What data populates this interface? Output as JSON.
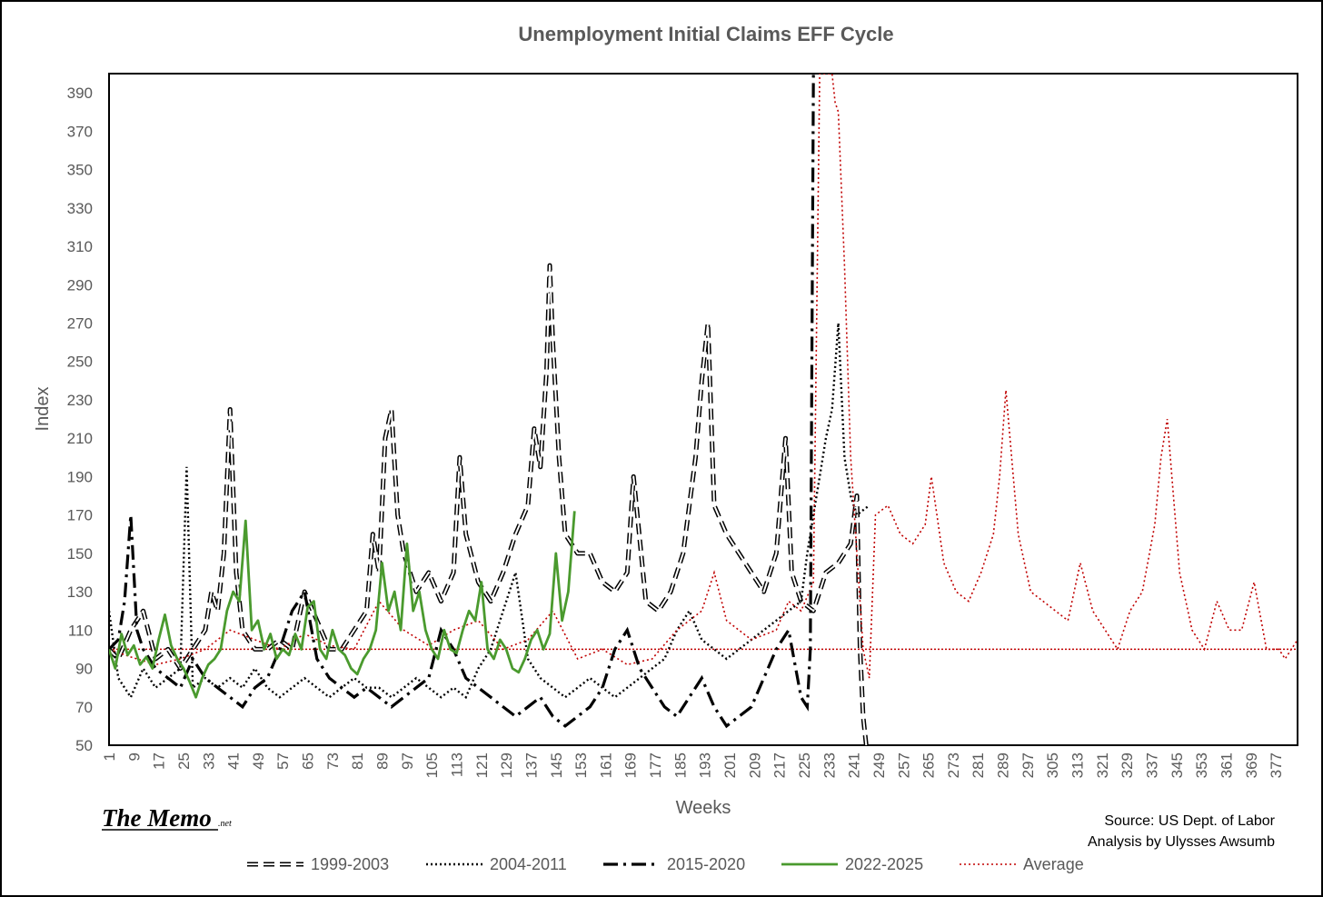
{
  "chart_data": {
    "type": "line",
    "title": "Unemployment Initial Claims EFF Cycle",
    "xlabel": "Weeks",
    "ylabel": "Index",
    "xlim": [
      1,
      384
    ],
    "ylim": [
      50,
      400
    ],
    "y_ticks": [
      50,
      70,
      90,
      110,
      130,
      150,
      170,
      190,
      210,
      230,
      250,
      270,
      290,
      310,
      330,
      350,
      370,
      390
    ],
    "x_ticks": [
      1,
      9,
      17,
      25,
      33,
      41,
      49,
      57,
      65,
      73,
      81,
      89,
      97,
      105,
      113,
      121,
      129,
      137,
      145,
      153,
      161,
      169,
      177,
      185,
      193,
      201,
      209,
      217,
      225,
      233,
      241,
      249,
      257,
      265,
      273,
      281,
      289,
      297,
      305,
      313,
      321,
      329,
      337,
      345,
      353,
      361,
      369,
      377
    ],
    "reference_line": 100,
    "grid": false,
    "legend_position": "bottom",
    "series": [
      {
        "name": "1999-2003",
        "style": "outline-dash",
        "color": "#000000",
        "x": [
          1,
          4,
          8,
          12,
          16,
          20,
          24,
          28,
          32,
          34,
          36,
          38,
          40,
          42,
          44,
          48,
          52,
          56,
          60,
          64,
          68,
          72,
          76,
          80,
          84,
          86,
          88,
          90,
          92,
          94,
          96,
          100,
          104,
          108,
          112,
          114,
          116,
          120,
          124,
          128,
          132,
          136,
          138,
          140,
          142,
          143,
          144,
          146,
          148,
          152,
          156,
          160,
          164,
          168,
          170,
          174,
          178,
          182,
          186,
          190,
          192,
          194,
          196,
          200,
          204,
          208,
          212,
          216,
          219,
          221,
          224,
          228,
          232,
          236,
          240,
          242,
          243,
          244,
          245
        ],
        "values": [
          100,
          95,
          110,
          120,
          95,
          100,
          90,
          100,
          110,
          130,
          120,
          150,
          225,
          140,
          110,
          100,
          100,
          105,
          100,
          130,
          115,
          100,
          100,
          110,
          120,
          160,
          140,
          210,
          225,
          170,
          150,
          130,
          140,
          125,
          140,
          200,
          160,
          135,
          125,
          140,
          160,
          175,
          215,
          195,
          245,
          300,
          260,
          200,
          160,
          150,
          150,
          135,
          130,
          140,
          190,
          125,
          120,
          130,
          150,
          200,
          240,
          270,
          175,
          160,
          150,
          140,
          130,
          150,
          210,
          140,
          125,
          120,
          140,
          145,
          155,
          180,
          100,
          65,
          50
        ]
      },
      {
        "name": "2004-2011",
        "style": "dotted",
        "color": "#000000",
        "x": [
          1,
          4,
          8,
          12,
          16,
          20,
          24,
          26,
          28,
          32,
          36,
          40,
          44,
          48,
          52,
          56,
          60,
          64,
          68,
          72,
          76,
          80,
          84,
          88,
          92,
          96,
          100,
          104,
          108,
          112,
          116,
          120,
          124,
          128,
          132,
          136,
          140,
          144,
          148,
          152,
          156,
          160,
          164,
          168,
          172,
          176,
          180,
          184,
          188,
          192,
          196,
          200,
          204,
          208,
          212,
          216,
          220,
          224,
          226,
          228,
          230,
          232,
          234,
          236,
          238,
          240,
          242,
          246
        ],
        "values": [
          120,
          85,
          75,
          90,
          80,
          85,
          90,
          195,
          80,
          85,
          80,
          85,
          80,
          90,
          80,
          75,
          80,
          85,
          80,
          75,
          80,
          85,
          80,
          80,
          75,
          80,
          85,
          80,
          75,
          80,
          75,
          90,
          100,
          120,
          140,
          95,
          85,
          80,
          75,
          80,
          85,
          80,
          75,
          80,
          85,
          90,
          95,
          110,
          120,
          105,
          100,
          95,
          100,
          105,
          110,
          115,
          120,
          125,
          150,
          170,
          190,
          210,
          225,
          270,
          200,
          180,
          170,
          175
        ]
      },
      {
        "name": "2015-2020",
        "style": "dash-dot",
        "color": "#000000",
        "x": [
          1,
          4,
          6,
          8,
          10,
          12,
          16,
          20,
          24,
          28,
          32,
          36,
          40,
          44,
          48,
          52,
          56,
          60,
          64,
          68,
          72,
          76,
          80,
          84,
          88,
          92,
          96,
          100,
          104,
          108,
          112,
          116,
          120,
          124,
          128,
          132,
          136,
          140,
          144,
          148,
          152,
          156,
          160,
          164,
          168,
          172,
          176,
          180,
          184,
          188,
          192,
          196,
          200,
          204,
          208,
          212,
          216,
          220,
          224,
          226,
          227,
          228
        ],
        "values": [
          100,
          105,
          125,
          170,
          110,
          100,
          90,
          85,
          80,
          95,
          85,
          80,
          75,
          70,
          80,
          85,
          100,
          120,
          130,
          95,
          85,
          80,
          75,
          80,
          75,
          70,
          75,
          80,
          85,
          110,
          100,
          85,
          80,
          75,
          70,
          65,
          70,
          75,
          65,
          60,
          65,
          70,
          80,
          100,
          110,
          90,
          80,
          70,
          65,
          75,
          85,
          70,
          60,
          65,
          70,
          85,
          100,
          110,
          75,
          70,
          100,
          400
        ]
      },
      {
        "name": "2022-2025",
        "style": "solid",
        "color": "#4a9a2e",
        "x": [
          1,
          3,
          5,
          7,
          9,
          11,
          13,
          15,
          17,
          19,
          21,
          23,
          25,
          27,
          29,
          31,
          33,
          35,
          37,
          39,
          41,
          43,
          45,
          47,
          49,
          51,
          53,
          55,
          57,
          59,
          61,
          63,
          65,
          67,
          69,
          71,
          73,
          75,
          77,
          79,
          81,
          83,
          85,
          87,
          89,
          91,
          93,
          95,
          97,
          99,
          101,
          103,
          105,
          107,
          109,
          111,
          113,
          115,
          117,
          119,
          121,
          123,
          125,
          127,
          129,
          131,
          133,
          135,
          137,
          139,
          141,
          143,
          145,
          147,
          149,
          151
        ],
        "values": [
          100,
          90,
          108,
          97,
          102,
          92,
          96,
          90,
          105,
          118,
          102,
          95,
          90,
          83,
          75,
          85,
          92,
          95,
          100,
          120,
          130,
          125,
          167,
          110,
          115,
          100,
          108,
          95,
          100,
          97,
          108,
          100,
          122,
          125,
          100,
          95,
          110,
          100,
          97,
          90,
          87,
          95,
          100,
          110,
          145,
          120,
          130,
          110,
          155,
          120,
          130,
          110,
          100,
          95,
          110,
          100,
          98,
          110,
          120,
          115,
          135,
          100,
          95,
          105,
          100,
          90,
          88,
          95,
          105,
          110,
          100,
          108,
          150,
          115,
          130,
          172
        ]
      },
      {
        "name": "Average",
        "style": "dotted",
        "color": "#c00000",
        "x": [
          1,
          8,
          16,
          24,
          32,
          40,
          48,
          56,
          64,
          72,
          80,
          88,
          96,
          104,
          112,
          120,
          128,
          136,
          144,
          152,
          160,
          168,
          176,
          184,
          192,
          196,
          200,
          208,
          216,
          220,
          224,
          228,
          230,
          232,
          234,
          235,
          236,
          238,
          240,
          242,
          244,
          246,
          248,
          252,
          256,
          260,
          264,
          266,
          270,
          274,
          278,
          282,
          286,
          288,
          290,
          294,
          298,
          302,
          306,
          310,
          314,
          318,
          322,
          326,
          330,
          334,
          338,
          340,
          342,
          346,
          350,
          354,
          358,
          362,
          366,
          370,
          374,
          378,
          380,
          384
        ],
        "values": [
          100,
          96,
          92,
          95,
          100,
          110,
          105,
          100,
          108,
          102,
          100,
          125,
          110,
          102,
          110,
          115,
          100,
          105,
          120,
          95,
          100,
          92,
          95,
          110,
          120,
          140,
          115,
          105,
          110,
          125,
          120,
          135,
          400,
          400,
          400,
          385,
          380,
          300,
          200,
          150,
          100,
          85,
          170,
          175,
          160,
          155,
          165,
          190,
          145,
          130,
          125,
          140,
          160,
          190,
          235,
          160,
          130,
          125,
          120,
          115,
          145,
          120,
          110,
          100,
          120,
          130,
          165,
          200,
          220,
          140,
          110,
          100,
          125,
          110,
          110,
          135,
          100,
          100,
          95,
          105
        ]
      }
    ]
  },
  "branding": {
    "name": "The Memo",
    "suffix": ".net"
  },
  "source": {
    "line1": "Source: US Dept. of Labor",
    "line2": "Analysis by Ulysses Awsumb"
  }
}
